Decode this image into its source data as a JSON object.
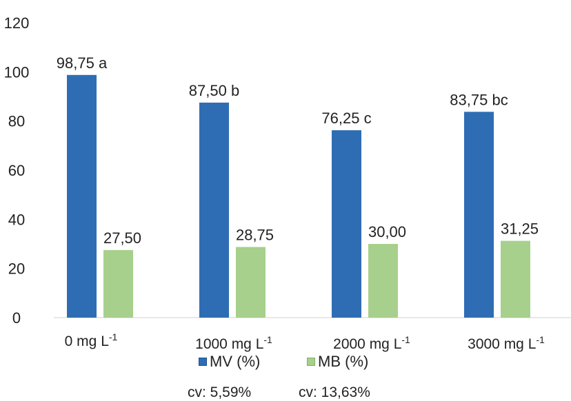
{
  "chart_data": {
    "type": "bar",
    "title": "",
    "xlabel": "",
    "ylabel": "",
    "ylim": [
      0,
      120
    ],
    "y_ticks": [
      "0",
      "20",
      "40",
      "60",
      "80",
      "100",
      "120"
    ],
    "categories": [
      {
        "base": "0 mg L",
        "sup": "-1"
      },
      {
        "base": "1000 mg L",
        "sup": "-1"
      },
      {
        "base": "2000 mg L",
        "sup": "-1"
      },
      {
        "base": "3000 mg L",
        "sup": "-1"
      }
    ],
    "series": [
      {
        "name": "MV (%)",
        "color": "#2e6db4",
        "values": [
          98.75,
          87.5,
          76.25,
          83.75
        ],
        "labels": [
          "98,75 a",
          "87,50 b",
          "76,25 c",
          "83,75 bc"
        ]
      },
      {
        "name": "MB (%)",
        "color": "#a6d08b",
        "values": [
          27.5,
          28.75,
          30.0,
          31.25
        ],
        "labels": [
          "27,50",
          "28,75",
          "30,00",
          "31,25"
        ]
      }
    ],
    "grid": false,
    "legend_position": "bottom",
    "annotations": [
      "cv: 5,59%",
      "cv: 13,63%"
    ]
  }
}
